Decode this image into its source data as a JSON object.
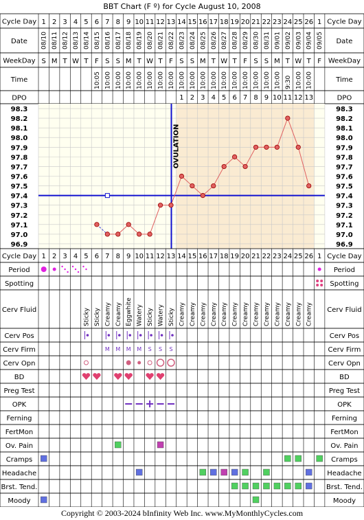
{
  "title": "BBT Chart (F º) for Cycle August 10, 2008",
  "footer": "Copyright © 2003-2024 bInfinity Web Inc.    www.MyMonthlyCycles.com",
  "colors": {
    "shade": "#faebd2",
    "plot_bg": "#fffff0",
    "grid": "#c8c8c8",
    "line": "#e06060",
    "cover": "#1010d0",
    "ovulation": "#1010d0",
    "purple": "#7030c0"
  },
  "labels": {
    "cycle_day": "Cycle Day",
    "date": "Date",
    "weekday": "WeekDay",
    "time": "Time",
    "dpo": "DPO",
    "ovulation": "OVULATION"
  },
  "cycle_days": [
    "1",
    "2",
    "3",
    "4",
    "5",
    "6",
    "7",
    "8",
    "9",
    "10",
    "11",
    "12",
    "13",
    "14",
    "15",
    "16",
    "17",
    "18",
    "19",
    "20",
    "21",
    "22",
    "23",
    "24",
    "25",
    "26",
    "1"
  ],
  "dates": [
    "08/10",
    "08/11",
    "08/12",
    "08/13",
    "08/14",
    "08/15",
    "08/16",
    "08/17",
    "08/18",
    "08/19",
    "08/20",
    "08/21",
    "08/22",
    "08/23",
    "08/24",
    "08/25",
    "08/26",
    "08/27",
    "08/28",
    "08/29",
    "08/30",
    "08/31",
    "09/01",
    "09/02",
    "09/03",
    "09/04",
    "09/05"
  ],
  "weekdays": [
    "S",
    "M",
    "T",
    "W",
    "T",
    "F",
    "S",
    "S",
    "M",
    "T",
    "W",
    "T",
    "F",
    "S",
    "S",
    "M",
    "T",
    "W",
    "T",
    "F",
    "S",
    "S",
    "M",
    "T",
    "W",
    "T",
    "F"
  ],
  "times": [
    "",
    "",
    "",
    "",
    "",
    "10:05",
    "10:00",
    "10:00",
    "10:00",
    "10:00",
    "10:00",
    "10:00",
    "10:00",
    "10:00",
    "10:00",
    "10:00",
    "10:00",
    "10:00",
    "10:00",
    "10:00",
    "10:00",
    "10:00",
    "10:00",
    "9:30",
    "10:00",
    "10:00",
    ""
  ],
  "dpo": [
    "",
    "",
    "",
    "",
    "",
    "",
    "",
    "",
    "",
    "",
    "",
    "",
    "",
    "1",
    "2",
    "3",
    "4",
    "5",
    "6",
    "7",
    "8",
    "9",
    "10",
    "11",
    "12",
    "13",
    ""
  ],
  "chart_data": {
    "type": "line",
    "x": [
      6,
      7,
      8,
      9,
      10,
      11,
      12,
      13,
      14,
      15,
      16,
      17,
      18,
      19,
      20,
      21,
      22,
      23,
      24,
      25,
      26
    ],
    "temps": [
      97.1,
      97.0,
      97.0,
      97.1,
      97.0,
      97.0,
      97.3,
      97.3,
      97.6,
      97.5,
      97.4,
      97.5,
      97.7,
      97.8,
      97.7,
      97.9,
      97.9,
      97.9,
      98.2,
      97.9,
      97.5
    ],
    "dashed_segment": [
      6,
      7
    ],
    "ylim": [
      96.9,
      98.3
    ],
    "yticks": [
      "98.3",
      "98.2",
      "98.1",
      "98.0",
      "97.9",
      "97.8",
      "97.7",
      "97.6",
      "97.5",
      "97.4",
      "97.3",
      "97.2",
      "97.1",
      "97.0",
      "96.9"
    ],
    "coverline": 97.4,
    "ovulation_after_day": 13,
    "luteal_shade_from_day": 14,
    "open_marker": {
      "day": 7,
      "temp": 97.4
    },
    "grid": true
  },
  "rows": {
    "period": {
      "label": "Period",
      "marks": {
        "1": "big",
        "2": "small",
        "3": "dots3",
        "4": "dots3",
        "5": "dots2",
        "27": "small"
      }
    },
    "spotting": {
      "label": "Spotting",
      "marks": {
        "27": "spot"
      }
    },
    "cerv_fluid": {
      "label": "Cerv Fluid",
      "values": {
        "5": "Sticky",
        "6": "Sticky",
        "7": "Creamy",
        "8": "Creamy",
        "9": "Eggwhite",
        "10": "Watery",
        "11": "Sticky",
        "12": "Watery",
        "13": "Sticky",
        "14": "Creamy",
        "15": "Creamy",
        "16": "Creamy",
        "17": "Creamy",
        "18": "Creamy",
        "19": "Creamy",
        "20": "Creamy",
        "21": "Creamy",
        "22": "Creamy",
        "23": "Creamy",
        "24": "Creamy",
        "25": "Creamy",
        "26": "Creamy"
      }
    },
    "cerv_pos": {
      "label": "Cerv Pos",
      "days": [
        "5",
        "7",
        "8",
        "9",
        "10",
        "11",
        "12",
        "13"
      ]
    },
    "cerv_firm": {
      "label": "Cerv Firm",
      "values": {
        "7": "M",
        "8": "M",
        "9": "M",
        "10": "M",
        "11": "S",
        "12": "S",
        "13": "S"
      }
    },
    "cerv_opn": {
      "label": "Cerv Opn",
      "marks": {
        "5": "ring-s",
        "9": "dot",
        "10": "dot-s",
        "11": "ring-s",
        "12": "ring-l",
        "13": "ring-l"
      }
    },
    "bd": {
      "label": "BD",
      "days": [
        "5",
        "6",
        "8",
        "9",
        "11",
        "12"
      ]
    },
    "preg_test": {
      "label": "Preg Test"
    },
    "opk": {
      "label": "OPK",
      "marks": {
        "9": "neg",
        "10": "neg",
        "11": "pos",
        "12": "neg",
        "13": "neg"
      }
    },
    "ferning": {
      "label": "Ferning"
    },
    "fertmon": {
      "label": "FertMon"
    },
    "ov_pain": {
      "label": "Ov. Pain",
      "marks": {
        "8": "green",
        "12": "magenta"
      }
    },
    "cramps": {
      "label": "Cramps",
      "marks": {
        "1": "blue",
        "24": "green",
        "25": "green",
        "27": "green"
      }
    },
    "headache": {
      "label": "Headache",
      "marks": {
        "10": "blue",
        "16": "green",
        "17": "blue",
        "18": "magenta",
        "19": "blue",
        "20": "green",
        "22": "green",
        "26": "blue"
      }
    },
    "brst_tend": {
      "label": "Brst. Tend.",
      "marks": {
        "19": "green",
        "20": "green",
        "21": "green",
        "22": "green",
        "23": "green",
        "24": "green",
        "25": "green",
        "26": "blue"
      }
    },
    "moody": {
      "label": "Moody",
      "marks": {
        "1": "blue",
        "21": "green"
      }
    }
  }
}
